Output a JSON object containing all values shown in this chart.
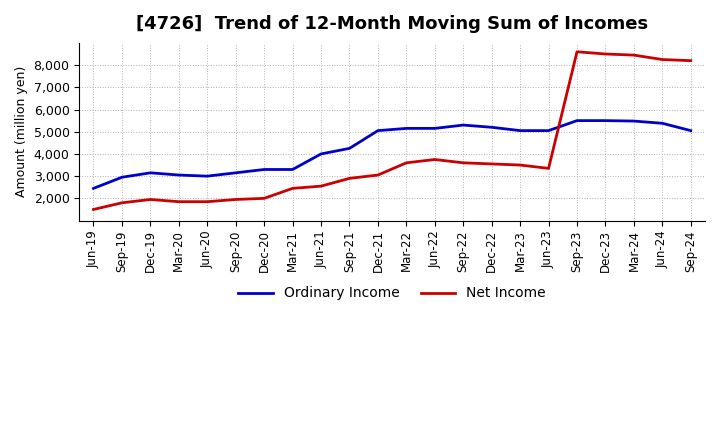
{
  "title": "[4726]  Trend of 12-Month Moving Sum of Incomes",
  "ylabel": "Amount (million yen)",
  "x_labels": [
    "Jun-19",
    "Sep-19",
    "Dec-19",
    "Mar-20",
    "Jun-20",
    "Sep-20",
    "Dec-20",
    "Mar-21",
    "Jun-21",
    "Sep-21",
    "Dec-21",
    "Mar-22",
    "Jun-22",
    "Sep-22",
    "Dec-22",
    "Mar-23",
    "Jun-23",
    "Sep-23",
    "Dec-23",
    "Mar-24",
    "Jun-24",
    "Sep-24"
  ],
  "ordinary_income": [
    2450,
    2950,
    3150,
    3050,
    3000,
    3150,
    3300,
    3300,
    4000,
    4250,
    5050,
    5150,
    5150,
    5300,
    5200,
    5050,
    5050,
    5500,
    5500,
    5480,
    5380,
    5050
  ],
  "net_income": [
    1500,
    1800,
    1950,
    1850,
    1850,
    1950,
    2000,
    2450,
    2550,
    2900,
    3050,
    3600,
    3750,
    3600,
    3550,
    3500,
    3350,
    8600,
    8500,
    8450,
    8250,
    8200
  ],
  "ordinary_color": "#0000cc",
  "net_color": "#cc0000",
  "ylim": [
    1000,
    9000
  ],
  "yticks": [
    2000,
    3000,
    4000,
    5000,
    6000,
    7000,
    8000
  ],
  "background_color": "#ffffff",
  "grid_color": "#aaaaaa",
  "title_fontsize": 13,
  "axis_fontsize": 10,
  "legend_fontsize": 10
}
